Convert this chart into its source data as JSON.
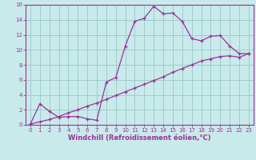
{
  "line1_x": [
    0,
    1,
    2,
    3,
    4,
    5,
    6,
    7,
    8,
    9,
    10,
    11,
    12,
    13,
    14,
    15,
    16,
    17,
    18,
    19,
    20,
    21,
    22,
    23
  ],
  "line1_y": [
    0.1,
    2.8,
    1.8,
    1.0,
    1.1,
    1.1,
    0.8,
    0.6,
    5.7,
    6.3,
    10.5,
    13.8,
    14.2,
    15.8,
    14.8,
    14.9,
    13.8,
    11.5,
    11.2,
    11.8,
    11.9,
    10.5,
    9.5,
    9.5
  ],
  "line2_x": [
    0,
    1,
    2,
    3,
    4,
    5,
    6,
    7,
    8,
    9,
    10,
    11,
    12,
    13,
    14,
    15,
    16,
    17,
    18,
    19,
    20,
    21,
    22,
    23
  ],
  "line2_y": [
    0.1,
    0.4,
    0.7,
    1.1,
    1.6,
    2.0,
    2.5,
    2.9,
    3.4,
    3.9,
    4.4,
    4.9,
    5.4,
    5.9,
    6.4,
    7.0,
    7.5,
    8.0,
    8.5,
    8.8,
    9.1,
    9.2,
    9.0,
    9.5
  ],
  "line_color": "#993399",
  "bg_color": "#c8eaea",
  "grid_color": "#a0cccc",
  "xlabel": "Windchill (Refroidissement éolien,°C)",
  "xlim": [
    -0.5,
    23.5
  ],
  "ylim": [
    0,
    16
  ],
  "xticks": [
    0,
    1,
    2,
    3,
    4,
    5,
    6,
    7,
    8,
    9,
    10,
    11,
    12,
    13,
    14,
    15,
    16,
    17,
    18,
    19,
    20,
    21,
    22,
    23
  ],
  "yticks": [
    0,
    2,
    4,
    6,
    8,
    10,
    12,
    14,
    16
  ],
  "tick_fontsize": 5.0,
  "xlabel_fontsize": 6.0,
  "marker": "+"
}
